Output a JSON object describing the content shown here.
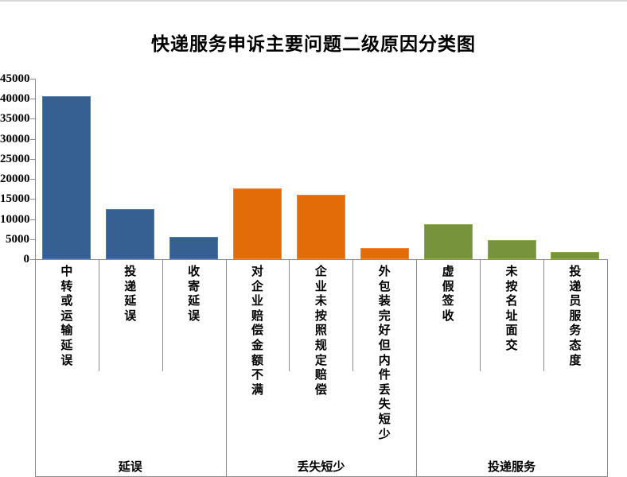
{
  "title": "快递服务申诉主要问题二级原因分类图",
  "chart_data": {
    "type": "bar",
    "title": "快递服务申诉主要问题二级原因分类图",
    "xlabel": "",
    "ylabel": "",
    "ylim": [
      0,
      45000
    ],
    "ytick_step": 5000,
    "ytick_labels": [
      "0",
      "5000",
      "10000",
      "15000",
      "20000",
      "25000",
      "30000",
      "35000",
      "40000",
      "45000"
    ],
    "grid": false,
    "legend_position": "none",
    "categories": [
      "中转或运输延误",
      "投递延误",
      "收寄延误",
      "对企业赔偿金额不满",
      "企业未按照规定赔偿",
      "外包装完好但内件丢失短少",
      "虚假签收",
      "未按名址面交",
      "投递员服务态度"
    ],
    "values": [
      40700,
      12400,
      5500,
      17700,
      16000,
      2800,
      8700,
      4700,
      1700
    ],
    "group_labels": [
      "延误",
      "丢失短少",
      "投递服务"
    ],
    "group_of": [
      0,
      0,
      0,
      1,
      1,
      1,
      2,
      2,
      2
    ],
    "group_colors": [
      "#366092",
      "#E36C09",
      "#77933C"
    ],
    "bar_border_colors": [
      "#4f7cb1",
      "#f08536",
      "#8dab51"
    ],
    "axis_line_color": "#8c8c8c"
  }
}
